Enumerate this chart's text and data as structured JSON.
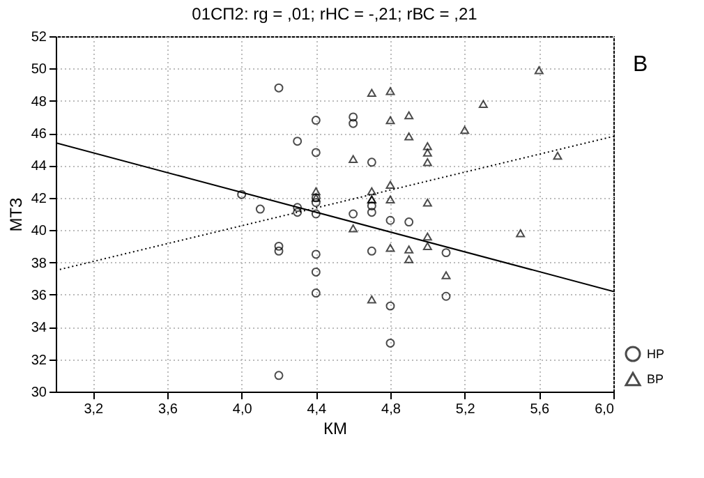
{
  "chart_data": {
    "type": "scatter",
    "title": "01СП2: rg = ,01; rНС = -,21; rВС = ,21",
    "xlabel": "КМ",
    "ylabel": "МТЗ",
    "annotations": [
      "В"
    ],
    "xlim": [
      3.0,
      6.0
    ],
    "xticks": [
      {
        "value": 3.2,
        "label": "3,2"
      },
      {
        "value": 3.6,
        "label": "3,6"
      },
      {
        "value": 4.0,
        "label": "4,0"
      },
      {
        "value": 4.4,
        "label": "4,4"
      },
      {
        "value": 4.8,
        "label": "4,8"
      },
      {
        "value": 5.2,
        "label": "5,2"
      },
      {
        "value": 5.6,
        "label": "5,6"
      },
      {
        "value": 6.0,
        "label": "6,0"
      }
    ],
    "ylim": [
      30,
      52
    ],
    "yticks": [
      30,
      32,
      34,
      36,
      38,
      40,
      42,
      44,
      46,
      48,
      50,
      52
    ],
    "grid": true,
    "legend": "bottom right",
    "series": [
      {
        "name": "НР",
        "type": "scatter",
        "marker": "circle",
        "color": "#000000",
        "x": [
          4.2,
          4.4,
          4.6,
          4.6,
          4.3,
          4.4,
          4.7,
          4.0,
          4.1,
          4.3,
          4.3,
          4.4,
          4.4,
          4.4,
          4.6,
          4.7,
          4.7,
          4.2,
          4.2,
          4.4,
          4.4,
          4.4,
          4.7,
          4.2,
          4.8,
          4.9,
          5.1,
          5.1,
          4.8,
          4.8
        ],
        "values": [
          48.8,
          46.8,
          47.0,
          46.6,
          45.5,
          44.8,
          44.2,
          42.2,
          41.3,
          41.4,
          41.1,
          42.0,
          41.7,
          41.0,
          41.0,
          41.5,
          41.1,
          39.0,
          38.7,
          38.5,
          37.4,
          36.1,
          38.7,
          31.0,
          40.6,
          40.5,
          38.6,
          35.9,
          35.3,
          33.0
        ]
      },
      {
        "name": "ВР",
        "type": "scatter",
        "marker": "triangle",
        "color": "#000000",
        "x": [
          4.7,
          4.6,
          4.4,
          4.4,
          4.7,
          4.7,
          4.6,
          4.7,
          4.8,
          4.8,
          4.9,
          4.9,
          5.0,
          5.0,
          5.0,
          5.2,
          5.3,
          5.6,
          5.7,
          4.8,
          4.8,
          4.7,
          5.0,
          5.0,
          5.0,
          4.8,
          4.9,
          4.9,
          5.5,
          5.1
        ],
        "values": [
          48.5,
          44.4,
          42.4,
          42.0,
          42.4,
          41.9,
          40.1,
          35.7,
          48.6,
          46.8,
          47.1,
          45.8,
          45.2,
          44.8,
          44.2,
          46.2,
          47.8,
          49.9,
          44.6,
          42.8,
          41.9,
          41.9,
          41.7,
          39.6,
          39.0,
          38.9,
          38.8,
          38.2,
          39.8,
          37.2
        ]
      },
      {
        "type": "line",
        "line_style": "solid",
        "color": "#000000",
        "x": [
          3.0,
          6.0
        ],
        "values": [
          45.4,
          36.2
        ]
      },
      {
        "type": "line",
        "line_style": "dotted",
        "color": "#000000",
        "x": [
          3.0,
          6.0
        ],
        "values": [
          37.5,
          45.8
        ]
      }
    ]
  }
}
